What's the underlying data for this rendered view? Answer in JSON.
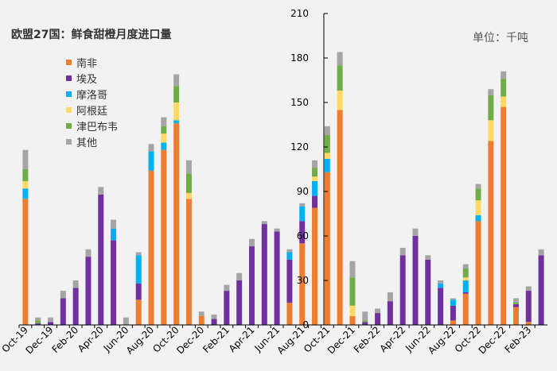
{
  "chart_data": {
    "type": "bar",
    "stacked": true,
    "title": "欧盟27国：鲜食甜橙月度进口量",
    "unit_label": "单位：千吨",
    "ylim": [
      0,
      210
    ],
    "yticks": [
      0,
      30,
      60,
      90,
      120,
      150,
      180,
      210
    ],
    "grid": false,
    "legend_position": "top-left",
    "categories": [
      "Oct-19",
      "Nov-19",
      "Dec-19",
      "Jan-20",
      "Feb-20",
      "Mar-20",
      "Apr-20",
      "May-20",
      "Jun-20",
      "Jul-20",
      "Aug-20",
      "Sep-20",
      "Oct-20",
      "Nov-20",
      "Dec-20",
      "Jan-21",
      "Feb-21",
      "Mar-21",
      "Apr-21",
      "May-21",
      "Jun-21",
      "Jul-21",
      "Aug-21",
      "Sep-21",
      "Oct-21",
      "Nov-21",
      "Dec-21",
      "Jan-22",
      "Feb-22",
      "Mar-22",
      "Apr-22",
      "May-22",
      "Jun-22",
      "Jul-22",
      "Aug-22",
      "Sep-22",
      "Oct-22",
      "Nov-22",
      "Dec-22",
      "Jan-23",
      "Feb-23",
      "Mar-23"
    ],
    "tick_labels": [
      "Oct-19",
      "Dec-19",
      "Feb-20",
      "Apr-20",
      "Jun-20",
      "Aug-20",
      "Oct-20",
      "Dec-20",
      "Feb-21",
      "Apr-21",
      "Jun-21",
      "Aug-21",
      "Oct-21",
      "Dec-21",
      "Feb-22",
      "Apr-22",
      "Jun-22",
      "Aug-22",
      "Oct-22",
      "Dec-22",
      "Feb-23"
    ],
    "series": [
      {
        "name": "南非",
        "color": "#ed7d31",
        "values": [
          85,
          0,
          0,
          0,
          0,
          0,
          0,
          0,
          0,
          17,
          104,
          118,
          136,
          85,
          6,
          0,
          0,
          0,
          0,
          0,
          0,
          15,
          55,
          79,
          103,
          145,
          6,
          0,
          0,
          0,
          0,
          0,
          0,
          0,
          3,
          21,
          70,
          124,
          147,
          12,
          2,
          0
        ]
      },
      {
        "name": "埃及",
        "color": "#7030a0",
        "values": [
          0,
          1,
          2,
          18,
          25,
          46,
          88,
          57,
          0,
          11,
          0,
          0,
          0,
          0,
          0,
          4,
          23,
          30,
          53,
          68,
          63,
          29,
          15,
          8,
          0,
          0,
          0,
          2,
          8,
          16,
          47,
          60,
          44,
          25,
          10,
          1,
          0,
          0,
          0,
          2,
          21,
          47
        ]
      },
      {
        "name": "摩洛哥",
        "color": "#00b0f0",
        "values": [
          7,
          0,
          0,
          0,
          0,
          0,
          0,
          8,
          0,
          19,
          13,
          5,
          2,
          0,
          0,
          0,
          0,
          0,
          0,
          0,
          0,
          5,
          10,
          10,
          9,
          0,
          0,
          0,
          0,
          0,
          0,
          0,
          0,
          3,
          4,
          8,
          4,
          0,
          0,
          0,
          0,
          0
        ]
      },
      {
        "name": "阿根廷",
        "color": "#ffd966",
        "values": [
          5,
          0,
          0,
          0,
          0,
          0,
          0,
          0,
          0,
          0,
          0,
          6,
          12,
          4,
          0,
          0,
          0,
          0,
          0,
          0,
          0,
          0,
          0,
          3,
          4,
          13,
          7,
          0,
          0,
          0,
          0,
          0,
          0,
          0,
          0,
          2,
          10,
          14,
          7,
          0,
          0,
          0
        ]
      },
      {
        "name": "津巴布韦",
        "color": "#70ad47",
        "values": [
          8,
          2,
          0,
          0,
          0,
          0,
          0,
          0,
          0,
          0,
          0,
          5,
          11,
          13,
          0,
          0,
          0,
          0,
          0,
          0,
          0,
          0,
          0,
          6,
          12,
          17,
          19,
          1,
          0,
          0,
          0,
          0,
          0,
          0,
          0,
          6,
          8,
          17,
          12,
          1,
          0,
          0
        ]
      },
      {
        "name": "其他",
        "color": "#a5a5a5",
        "values": [
          13,
          2,
          3,
          5,
          5,
          5,
          5,
          6,
          5,
          2,
          5,
          6,
          8,
          9,
          3,
          3,
          4,
          5,
          5,
          2,
          2,
          2,
          2,
          5,
          6,
          9,
          11,
          6,
          3,
          6,
          5,
          5,
          3,
          2,
          1,
          3,
          3,
          4,
          5,
          3,
          3,
          4
        ]
      }
    ]
  }
}
